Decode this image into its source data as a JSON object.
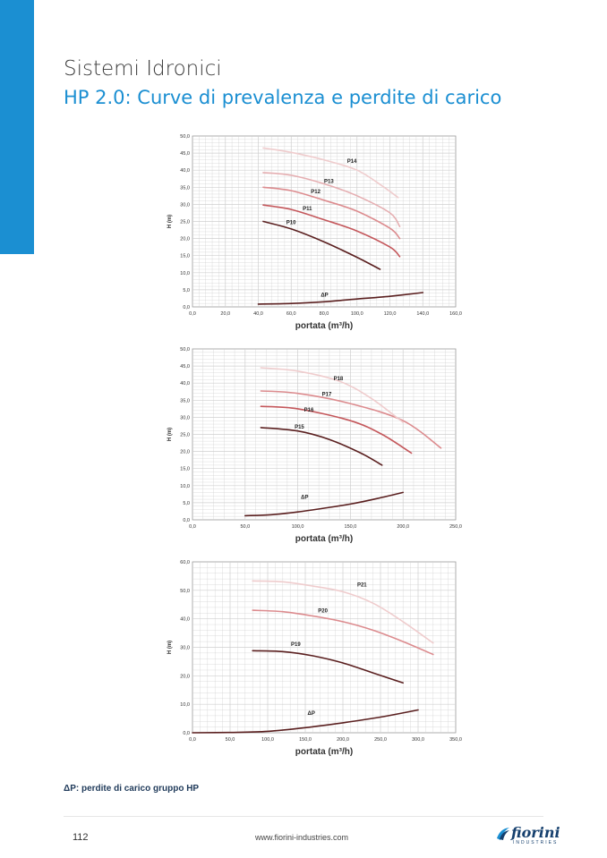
{
  "header": {
    "title": "Sistemi Idronici",
    "subtitle": "HP 2.0: Curve di prevalenza e perdite di carico"
  },
  "caption": "ΔP: perdite di carico gruppo HP",
  "footer": {
    "page_number": "112",
    "url": "www.fiorini-industries.com",
    "logo_text": "fiorini",
    "logo_subtext": "INDUSTRIES"
  },
  "colors": {
    "accent": "#1b8fd2",
    "grid": "#cfcfcf",
    "series": [
      "#5a1f1f",
      "#c4575b",
      "#dc8b8e",
      "#e5aeb1",
      "#efcccd"
    ]
  },
  "chart_data": [
    {
      "type": "line",
      "xlabel": "portata (m³/h)",
      "ylabel": "H (m)",
      "xlim": [
        0,
        160
      ],
      "ylim": [
        0,
        50
      ],
      "xticks": [
        "0,0",
        "20,0",
        "40,0",
        "60,0",
        "80,0",
        "100,0",
        "120,0",
        "140,0",
        "160,0"
      ],
      "yticks": [
        "0,0",
        "5,0",
        "10,0",
        "15,0",
        "20,0",
        "25,0",
        "30,0",
        "35,0",
        "40,0",
        "45,0",
        "50,0"
      ],
      "grid": true,
      "series": [
        {
          "name": "P10",
          "color": "#5a1f1f",
          "label_at": [
            57,
            24.2
          ],
          "points": [
            [
              43,
              25
            ],
            [
              60,
              22.8
            ],
            [
              80,
              19
            ],
            [
              100,
              14.5
            ],
            [
              114,
              11
            ]
          ]
        },
        {
          "name": "P11",
          "color": "#c4575b",
          "label_at": [
            67,
            28.3
          ],
          "points": [
            [
              43,
              29.8
            ],
            [
              60,
              28.5
            ],
            [
              80,
              25.5
            ],
            [
              100,
              22.2
            ],
            [
              120,
              17.5
            ],
            [
              126,
              14.7
            ]
          ]
        },
        {
          "name": "P12",
          "color": "#dc8b8e",
          "label_at": [
            72,
            33.2
          ],
          "points": [
            [
              43,
              35
            ],
            [
              60,
              34
            ],
            [
              80,
              31.2
            ],
            [
              100,
              28
            ],
            [
              120,
              23
            ],
            [
              126,
              20
            ]
          ]
        },
        {
          "name": "P13",
          "color": "#e5aeb1",
          "label_at": [
            80,
            36.3
          ],
          "points": [
            [
              43,
              39.3
            ],
            [
              60,
              38.5
            ],
            [
              80,
              36
            ],
            [
              100,
              32.5
            ],
            [
              120,
              27.5
            ],
            [
              126,
              23.5
            ]
          ]
        },
        {
          "name": "P14",
          "color": "#efcccd",
          "label_at": [
            94,
            42.2
          ],
          "points": [
            [
              43,
              46.5
            ],
            [
              60,
              45.2
            ],
            [
              80,
              43
            ],
            [
              100,
              40
            ],
            [
              115,
              35.5
            ],
            [
              125,
              32
            ]
          ]
        },
        {
          "name": "ΔP",
          "color": "#5a1f1f",
          "label_at": [
            78,
            3.0
          ],
          "points": [
            [
              40,
              0.8
            ],
            [
              60,
              1.0
            ],
            [
              80,
              1.5
            ],
            [
              100,
              2.3
            ],
            [
              120,
              3.1
            ],
            [
              140,
              4.2
            ]
          ]
        }
      ]
    },
    {
      "type": "line",
      "xlabel": "portata (m³/h)",
      "ylabel": "H (m)",
      "xlim": [
        0,
        250
      ],
      "ylim": [
        0,
        50
      ],
      "xticks": [
        "0,0",
        "50,0",
        "100,0",
        "150,0",
        "200,0",
        "250,0"
      ],
      "yticks": [
        "0,0",
        "5,0",
        "10,0",
        "15,0",
        "20,0",
        "25,0",
        "30,0",
        "35,0",
        "40,0",
        "45,0",
        "50,0"
      ],
      "grid": true,
      "series": [
        {
          "name": "P15",
          "color": "#5a1f1f",
          "label_at": [
            97,
            26.7
          ],
          "points": [
            [
              65,
              27
            ],
            [
              100,
              26
            ],
            [
              130,
              23.5
            ],
            [
              160,
              19.5
            ],
            [
              180,
              16
            ]
          ]
        },
        {
          "name": "P16",
          "color": "#c4575b",
          "label_at": [
            106,
            31.7
          ],
          "points": [
            [
              65,
              33.2
            ],
            [
              100,
              32.5
            ],
            [
              150,
              29
            ],
            [
              180,
              25
            ],
            [
              208,
              19.5
            ]
          ]
        },
        {
          "name": "P17",
          "color": "#dc8b8e",
          "label_at": [
            123,
            36.2
          ],
          "points": [
            [
              65,
              37.7
            ],
            [
              100,
              37
            ],
            [
              150,
              34
            ],
            [
              200,
              29
            ],
            [
              236,
              21
            ]
          ]
        },
        {
          "name": "P18",
          "color": "#efcccd",
          "label_at": [
            134,
            40.8
          ],
          "points": [
            [
              65,
              44.5
            ],
            [
              100,
              43.5
            ],
            [
              140,
              40.5
            ],
            [
              170,
              35.5
            ],
            [
              200,
              28.5
            ]
          ]
        },
        {
          "name": "ΔP",
          "color": "#5a1f1f",
          "label_at": [
            103,
            6.1
          ],
          "points": [
            [
              50,
              1.2
            ],
            [
              75,
              1.5
            ],
            [
              100,
              2.3
            ],
            [
              125,
              3.4
            ],
            [
              150,
              4.6
            ],
            [
              175,
              6.2
            ],
            [
              200,
              8.0
            ]
          ]
        }
      ]
    },
    {
      "type": "line",
      "xlabel": "portata (m³/h)",
      "ylabel": "H (m)",
      "xlim": [
        0,
        350
      ],
      "ylim": [
        0,
        60
      ],
      "xticks": [
        "0,0",
        "50,0",
        "100,0",
        "150,0",
        "200,0",
        "250,0",
        "300,0",
        "350,0"
      ],
      "yticks": [
        "0,0",
        "10,0",
        "20,0",
        "30,0",
        "40,0",
        "50,0",
        "60,0"
      ],
      "grid": true,
      "series": [
        {
          "name": "P19",
          "color": "#5a1f1f",
          "label_at": [
            131,
            30.5
          ],
          "points": [
            [
              80,
              28.8
            ],
            [
              120,
              28.5
            ],
            [
              160,
              27
            ],
            [
              200,
              24.5
            ],
            [
              240,
              21
            ],
            [
              280,
              17.5
            ]
          ]
        },
        {
          "name": "P20",
          "color": "#dc8b8e",
          "label_at": [
            167,
            42.2
          ],
          "points": [
            [
              80,
              43
            ],
            [
              120,
              42.5
            ],
            [
              160,
              41
            ],
            [
              200,
              39
            ],
            [
              240,
              36
            ],
            [
              280,
              32
            ],
            [
              320,
              27.5
            ]
          ]
        },
        {
          "name": "P21",
          "color": "#efcccd",
          "label_at": [
            219,
            51.3
          ],
          "points": [
            [
              80,
              53.3
            ],
            [
              120,
              53
            ],
            [
              160,
              51.5
            ],
            [
              200,
              49.5
            ],
            [
              240,
              45.5
            ],
            [
              280,
              39
            ],
            [
              320,
              31.5
            ]
          ]
        },
        {
          "name": "ΔP",
          "color": "#5a1f1f",
          "label_at": [
            153,
            6.3
          ],
          "points": [
            [
              0,
              0
            ],
            [
              50,
              0.1
            ],
            [
              100,
              0.5
            ],
            [
              150,
              1.8
            ],
            [
              200,
              3.5
            ],
            [
              250,
              5.5
            ],
            [
              300,
              8.0
            ]
          ]
        }
      ]
    }
  ]
}
